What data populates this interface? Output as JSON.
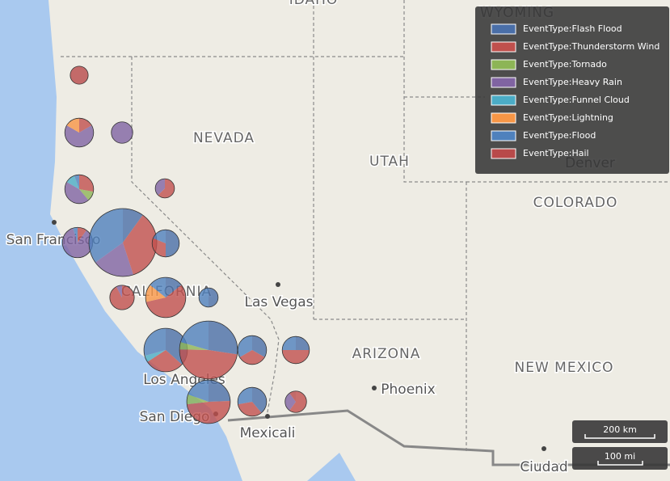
{
  "map_labels": [
    "IDAHO",
    "WYOMING",
    "NEVADA",
    "UTAH",
    "Denver",
    "COLORADO",
    "San Francisco",
    "CALIFORNIA",
    "Las Vegas",
    "ARIZONA",
    "Phoenix",
    "Los Angeles",
    "NEW MEXICO",
    "San Diego",
    "Mexicali",
    "Ciudad"
  ],
  "legend": [
    {
      "name": "EventType:Flash Flood",
      "color": "#4a6fa8"
    },
    {
      "name": "EventType:Thunderstorm Wind",
      "color": "#c0504d"
    },
    {
      "name": "EventType:Tornado",
      "color": "#8db556"
    },
    {
      "name": "EventType:Heavy Rain",
      "color": "#8064a2"
    },
    {
      "name": "EventType:Funnel Cloud",
      "color": "#4bacc6"
    },
    {
      "name": "EventType:Lightning",
      "color": "#f79646"
    },
    {
      "name": "EventType:Flood",
      "color": "#4f81bd"
    },
    {
      "name": "EventType:Hail",
      "color": "#b84a4a"
    }
  ],
  "markers": [
    [
      0,
      0,
      0,
      0,
      0,
      0,
      0,
      7
    ],
    [
      0,
      3,
      0,
      12,
      0,
      3,
      0,
      0
    ],
    [
      0,
      0,
      0,
      10,
      0,
      0,
      0,
      0
    ],
    [
      0,
      5,
      2,
      8,
      2,
      0,
      1,
      0
    ],
    [
      0,
      5,
      0,
      3,
      0,
      0,
      0,
      0
    ],
    [
      0,
      2,
      0,
      17,
      0,
      0,
      1,
      0
    ],
    [
      10,
      35,
      0,
      20,
      0,
      0,
      35,
      0
    ],
    [
      8,
      5,
      0,
      0,
      0,
      0,
      3,
      0
    ],
    [
      0,
      12,
      0,
      1,
      0,
      0,
      0,
      0
    ],
    [
      5,
      20,
      0,
      0,
      0,
      5,
      5,
      0
    ],
    [
      4,
      0,
      0,
      0,
      0,
      0,
      4,
      0
    ],
    [
      15,
      12,
      0,
      0,
      2,
      0,
      12,
      0
    ],
    [
      20,
      35,
      3,
      0,
      0,
      0,
      15,
      0
    ],
    [
      6,
      6,
      0,
      0,
      0,
      0,
      6,
      0
    ],
    [
      4,
      8,
      0,
      0,
      0,
      0,
      4,
      0
    ],
    [
      10,
      20,
      3,
      0,
      0,
      0,
      8,
      0
    ],
    [
      7,
      6,
      0,
      0,
      0,
      0,
      5,
      0
    ],
    [
      0,
      6,
      0,
      3,
      0,
      0,
      0,
      1
    ]
  ],
  "scale": [
    "200 km",
    "100 mi"
  ]
}
